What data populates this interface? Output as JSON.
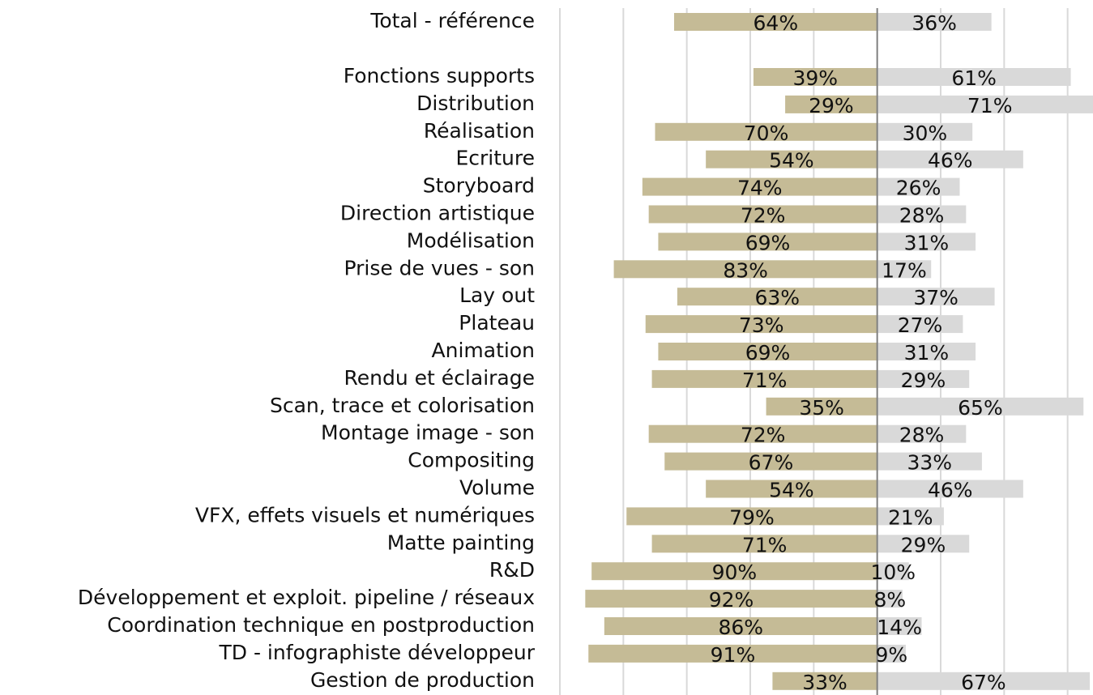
{
  "chart_data": {
    "type": "diverging-bar",
    "categories": [
      "Total - référence",
      "Fonctions supports",
      "Distribution",
      "Réalisation",
      "Ecriture",
      "Storyboard",
      "Direction artistique",
      "Modélisation",
      "Prise de vues - son",
      "Lay out",
      "Plateau",
      "Animation",
      "Rendu et éclairage",
      "Scan, trace et colorisation",
      "Montage image - son",
      "Compositing",
      "Volume",
      "VFX, effets visuels et numériques",
      "Matte painting",
      "R&D",
      "Développement et exploit. pipeline / réseaux",
      "Coordination technique en postproduction",
      "TD - infographiste développeur",
      "Gestion de production"
    ],
    "series": [
      {
        "color": "#c5bb96",
        "side": "left",
        "values": [
          64,
          39,
          29,
          70,
          54,
          74,
          72,
          69,
          83,
          63,
          73,
          69,
          71,
          35,
          72,
          67,
          54,
          79,
          71,
          90,
          92,
          86,
          91,
          33
        ],
        "value_labels": [
          "64%",
          "39%",
          "29%",
          "70%",
          "54%",
          "74%",
          "72%",
          "69%",
          "83%",
          "63%",
          "73%",
          "69%",
          "71%",
          "35%",
          "72%",
          "67%",
          "54%",
          "79%",
          "71%",
          "90%",
          "92%",
          "86%",
          "91%",
          "33%"
        ]
      },
      {
        "color": "#d9d9d9",
        "side": "right",
        "values": [
          36,
          61,
          71,
          30,
          46,
          26,
          28,
          31,
          17,
          37,
          27,
          31,
          29,
          65,
          28,
          33,
          46,
          21,
          29,
          10,
          8,
          14,
          9,
          67
        ],
        "value_labels": [
          "36%",
          "61%",
          "71%",
          "30%",
          "46%",
          "26%",
          "28%",
          "31%",
          "17%",
          "37%",
          "27%",
          "31%",
          "29%",
          "65%",
          "28%",
          "33%",
          "46%",
          "21%",
          "29%",
          "10%",
          "8%",
          "14%",
          "9%",
          "67%"
        ]
      }
    ],
    "xlim": [
      -100,
      68
    ],
    "xticks": [
      -100,
      -80,
      -60,
      -40,
      -20,
      0,
      20,
      40,
      60
    ],
    "grid": true
  }
}
